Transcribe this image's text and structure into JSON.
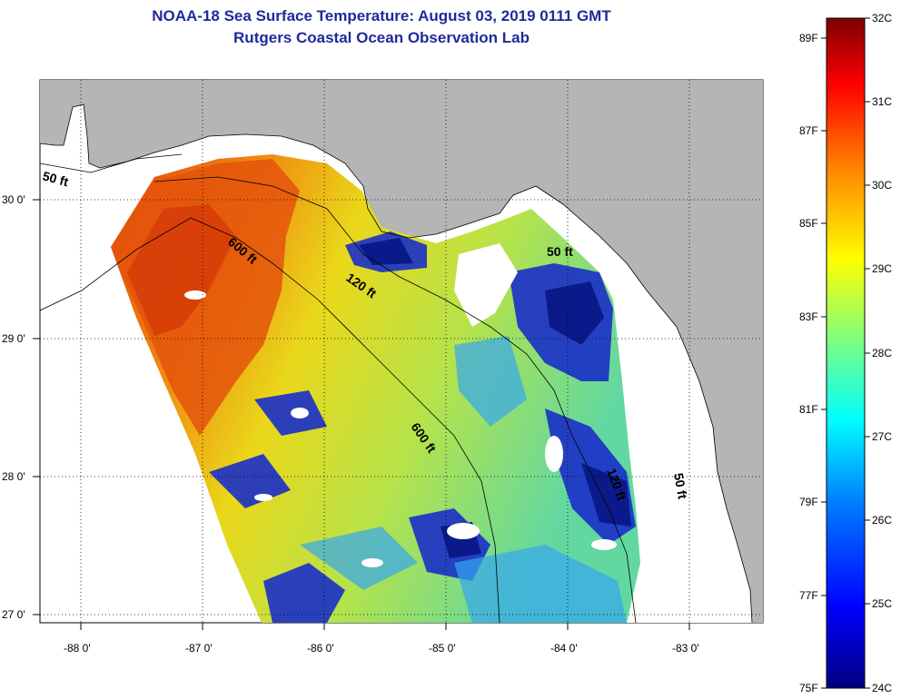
{
  "header": {
    "title": "NOAA-18 Sea Surface Temperature:  August 03, 2019 0111 GMT",
    "subtitle": "Rutgers Coastal Ocean Observation Lab"
  },
  "map": {
    "longitude_labels": [
      "-88 0'",
      "-87 0'",
      "-86 0'",
      "-85 0'",
      "-84 0'",
      "-83 0'"
    ],
    "latitude_labels": [
      "30 0'",
      "29 0'",
      "28 0'",
      "27 0'"
    ],
    "contour_labels": [
      "50 ft",
      "600 ft",
      "120 ft",
      "600 ft",
      "50 ft",
      "50 ft",
      "120 ft"
    ],
    "land_color": "#b5b5b5",
    "no_data_color": "#ffffff"
  },
  "colorbar": {
    "celsius_labels": [
      "32C",
      "31C",
      "30C",
      "29C",
      "28C",
      "27C",
      "26C",
      "25C",
      "24C"
    ],
    "fahrenheit_labels": [
      "89F",
      "87F",
      "85F",
      "83F",
      "81F",
      "79F",
      "77F",
      "75F"
    ],
    "range_c": [
      24,
      32
    ],
    "colors": [
      "#00007f",
      "#0000ff",
      "#0080ff",
      "#00ffff",
      "#80ff80",
      "#ffff00",
      "#ff8000",
      "#ff0000",
      "#7f0000"
    ]
  }
}
